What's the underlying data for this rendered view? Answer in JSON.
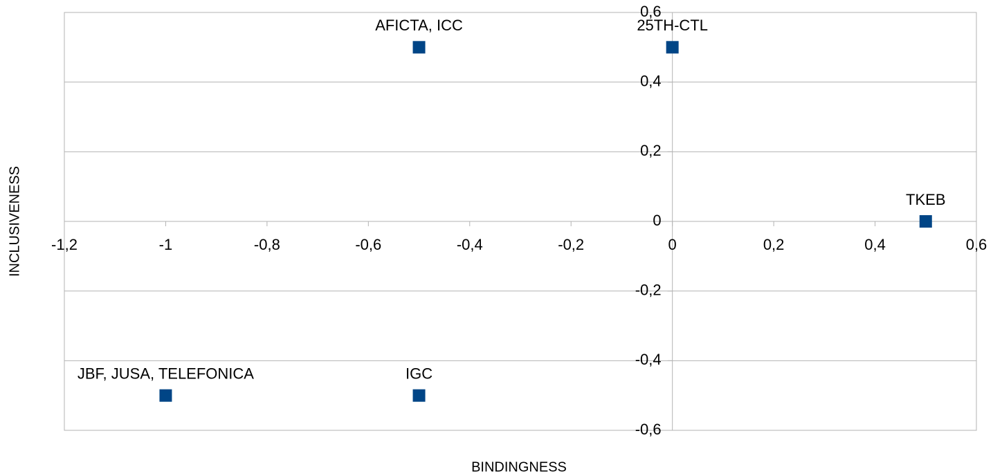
{
  "chart_data": {
    "type": "scatter",
    "xlabel": "BINDINGNESS",
    "ylabel": "INCLUSIVENESS",
    "series": [
      {
        "color": "#004586",
        "x": [
          -0.5,
          0,
          0.5,
          -1,
          -0.5
        ],
        "values": [
          0.5,
          0.5,
          0,
          -0.5,
          -0.5
        ],
        "labels": [
          "AFICTA, ICC",
          "25TH-CTL",
          "TKEB",
          "JBF, JUSA, TELEFONICA",
          "IGC"
        ]
      }
    ],
    "xlim": [
      -1.2,
      0.6
    ],
    "xticks": [
      {
        "value": -1.2,
        "label": "-1,2"
      },
      -1,
      {
        "value": -0.8,
        "label": "-0,8"
      },
      {
        "value": -0.6,
        "label": "-0,6"
      },
      {
        "value": -0.4,
        "label": "-0,4"
      },
      {
        "value": -0.2,
        "label": "-0,2"
      },
      0,
      {
        "value": 0.2,
        "label": "0,2"
      },
      {
        "value": 0.4,
        "label": "0,4"
      },
      {
        "value": 0.6,
        "label": "0,6"
      }
    ],
    "ylim": [
      -0.6,
      0.6
    ],
    "yticks": [
      {
        "value": -0.6,
        "label": "-0,6"
      },
      {
        "value": -0.4,
        "label": "-0,4"
      },
      {
        "value": -0.2,
        "label": "-0,2"
      },
      0,
      {
        "value": 0.2,
        "label": "0,2"
      },
      {
        "value": 0.4,
        "label": "0,4"
      },
      {
        "value": 0.6,
        "label": "0,6"
      }
    ],
    "grid": true
  }
}
